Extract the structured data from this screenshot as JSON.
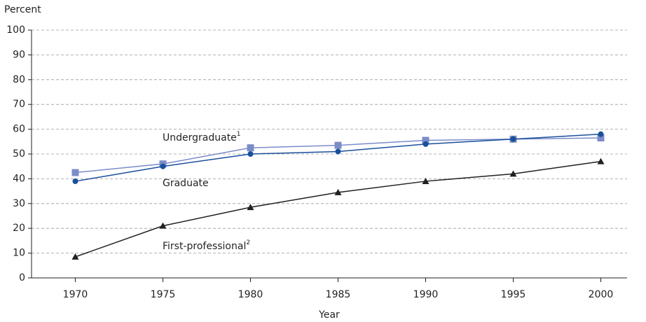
{
  "chart_data": {
    "type": "line",
    "y_label": "Percent",
    "x_label": "Year",
    "x": [
      1970,
      1975,
      1980,
      1985,
      1990,
      1995,
      2000
    ],
    "xlim": [
      1967.5,
      2001.5
    ],
    "xticks": [
      1970,
      1975,
      1980,
      1985,
      1990,
      1995,
      2000
    ],
    "ylim": [
      0,
      100
    ],
    "yticks": [
      0,
      10,
      20,
      30,
      40,
      50,
      60,
      70,
      80,
      90,
      100
    ],
    "grid": true,
    "series": [
      {
        "name": "Undergraduate",
        "footnote": "1",
        "color": "#7b8cc8",
        "marker": "square",
        "values": [
          42.5,
          46,
          52.5,
          53.5,
          55.5,
          56,
          56.5
        ]
      },
      {
        "name": "Graduate",
        "color": "#1a4f9c",
        "marker": "circle",
        "values": [
          39,
          45,
          50,
          51,
          54,
          56,
          58
        ]
      },
      {
        "name": "First-professional",
        "footnote": "2",
        "color": "#231f20",
        "marker": "triangle",
        "values": [
          8.5,
          21,
          28.5,
          34.5,
          39,
          42,
          47
        ]
      }
    ]
  }
}
